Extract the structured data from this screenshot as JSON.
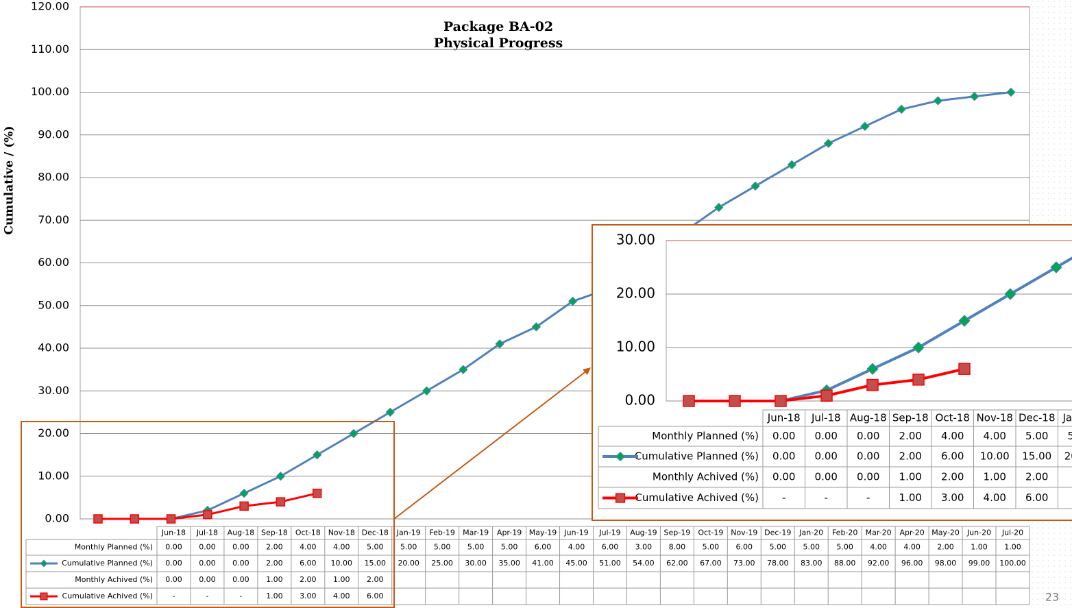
{
  "chart_data": {
    "type": "line",
    "title": "Package BA-02",
    "subtitle": "Physical Progress",
    "y_label": "Cumulative / (%)",
    "categories": [
      "Jun-18",
      "Jul-18",
      "Aug-18",
      "Sep-18",
      "Oct-18",
      "Nov-18",
      "Dec-18",
      "Jan-19",
      "Feb-19",
      "Mar-19",
      "Apr-19",
      "May-19",
      "Jun-19",
      "Jul-19",
      "Aug-19",
      "Sep-19",
      "Oct-19",
      "Nov-19",
      "Dec-19",
      "Jan-20",
      "Feb-20",
      "Mar-20",
      "Apr-20",
      "May-20",
      "Jun-20",
      "Jul-20"
    ],
    "ylim": [
      0,
      120
    ],
    "yticks": [
      {
        "value": 0,
        "label": "0.00"
      },
      {
        "value": 10,
        "label": "10.00"
      },
      {
        "value": 20,
        "label": "20.00"
      },
      {
        "value": 30,
        "label": "30.00"
      },
      {
        "value": 40,
        "label": "40.00"
      },
      {
        "value": 50,
        "label": "50.00"
      },
      {
        "value": 60,
        "label": "60.00"
      },
      {
        "value": 70,
        "label": "70.00"
      },
      {
        "value": 80,
        "label": "80.00"
      },
      {
        "value": 90,
        "label": "90.00"
      },
      {
        "value": 100,
        "label": "100.00"
      },
      {
        "value": 110,
        "label": "110.00"
      },
      {
        "value": 120,
        "label": "120.00"
      }
    ],
    "grid": true,
    "series": [
      {
        "name": "Monthly Planned (%)",
        "plotted": false,
        "values": [
          0,
          0,
          0,
          2,
          4,
          4,
          5,
          5,
          5,
          5,
          5,
          6,
          4,
          6,
          3,
          8,
          5,
          6,
          5,
          5,
          5,
          4,
          4,
          2,
          1,
          1
        ],
        "value_labels": [
          "0.00",
          "0.00",
          "0.00",
          "2.00",
          "4.00",
          "4.00",
          "5.00",
          "5.00",
          "5.00",
          "5.00",
          "5.00",
          "6.00",
          "4.00",
          "6.00",
          "3.00",
          "8.00",
          "5.00",
          "6.00",
          "5.00",
          "5.00",
          "5.00",
          "4.00",
          "4.00",
          "2.00",
          "1.00",
          "1.00"
        ]
      },
      {
        "name": "Cumulative Planned (%)",
        "plotted": true,
        "color": "#4f81bd",
        "marker": "diamond",
        "marker_color": "#00a651",
        "values": [
          0,
          0,
          0,
          2,
          6,
          10,
          15,
          20,
          25,
          30,
          35,
          41,
          45,
          51,
          54,
          62,
          67,
          73,
          78,
          83,
          88,
          92,
          96,
          98,
          99,
          100
        ],
        "value_labels": [
          "0.00",
          "0.00",
          "0.00",
          "2.00",
          "6.00",
          "10.00",
          "15.00",
          "20.00",
          "25.00",
          "30.00",
          "35.00",
          "41.00",
          "45.00",
          "51.00",
          "54.00",
          "62.00",
          "67.00",
          "73.00",
          "78.00",
          "83.00",
          "88.00",
          "92.00",
          "96.00",
          "98.00",
          "99.00",
          "100.00"
        ]
      },
      {
        "name": "Monthly Achived (%)",
        "plotted": false,
        "values": [
          0,
          0,
          0,
          1,
          2,
          1,
          2,
          null,
          null,
          null,
          null,
          null,
          null,
          null,
          null,
          null,
          null,
          null,
          null,
          null,
          null,
          null,
          null,
          null,
          null,
          null
        ],
        "value_labels": [
          "0.00",
          "0.00",
          "0.00",
          "1.00",
          "2.00",
          "1.00",
          "2.00",
          null,
          null,
          null,
          null,
          null,
          null,
          null,
          null,
          null,
          null,
          null,
          null,
          null,
          null,
          null,
          null,
          null,
          null,
          null
        ]
      },
      {
        "name": "Cumulative Achived (%)",
        "plotted": true,
        "color": "#ff0000",
        "marker": "square",
        "marker_color": "#c0504d",
        "values": [
          0,
          0,
          0,
          1,
          3,
          4,
          6,
          null,
          null,
          null,
          null,
          null,
          null,
          null,
          null,
          null,
          null,
          null,
          null,
          null,
          null,
          null,
          null,
          null,
          null,
          null
        ],
        "value_labels": [
          "-",
          "-",
          "-",
          "1.00",
          "3.00",
          "4.00",
          "6.00",
          null,
          null,
          null,
          null,
          null,
          null,
          null,
          null,
          null,
          null,
          null,
          null,
          null,
          null,
          null,
          null,
          null,
          null,
          null
        ]
      }
    ],
    "inset": {
      "ylim": [
        0,
        30
      ],
      "yticks": [
        {
          "value": 0,
          "label": "0.00"
        },
        {
          "value": 10,
          "label": "10.00"
        },
        {
          "value": 20,
          "label": "20.00"
        },
        {
          "value": 30,
          "label": "30.00"
        }
      ]
    }
  },
  "page_number": "23"
}
